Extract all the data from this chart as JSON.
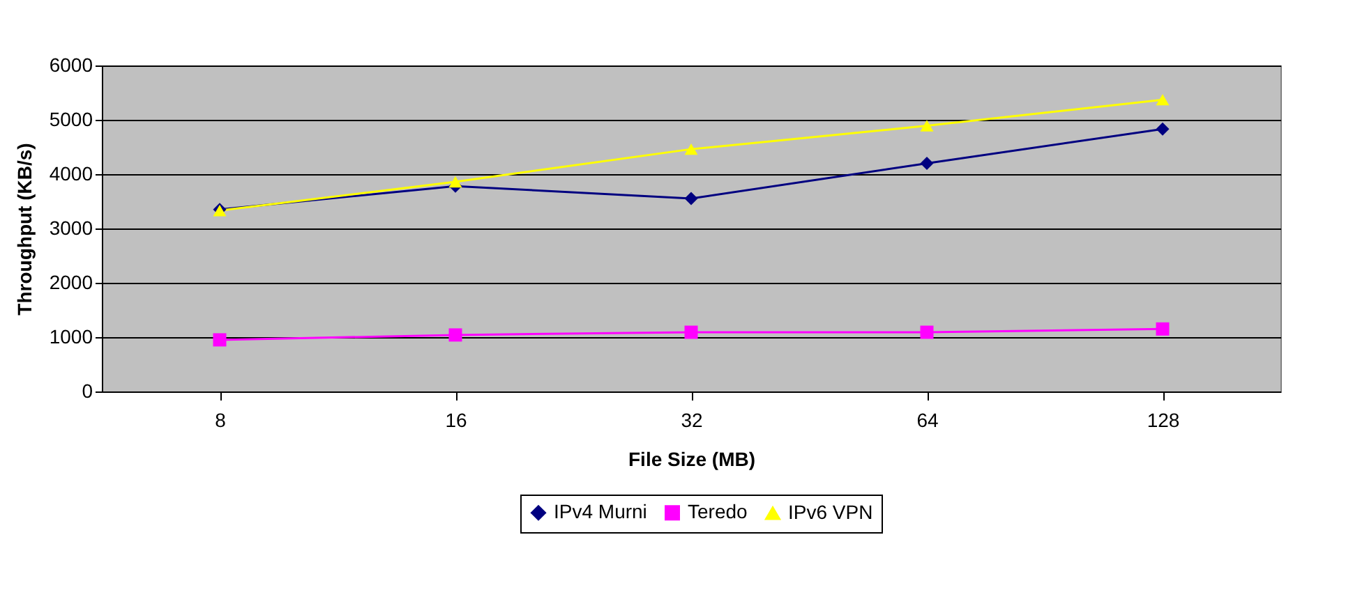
{
  "chart_data": {
    "type": "line",
    "xlabel": "File Size (MB)",
    "ylabel": "Throughput (KB/s)",
    "categories": [
      "8",
      "16",
      "32",
      "64",
      "128"
    ],
    "series": [
      {
        "name": "IPv4 Murni",
        "color": "#000080",
        "marker": "diamond",
        "values": [
          3350,
          3780,
          3550,
          4200,
          4830
        ]
      },
      {
        "name": "Teredo",
        "color": "#ff00ff",
        "marker": "square",
        "values": [
          950,
          1040,
          1090,
          1090,
          1150
        ]
      },
      {
        "name": "IPv6 VPN",
        "color": "#ffff00",
        "marker": "triangle",
        "values": [
          3330,
          3860,
          4460,
          4890,
          5370
        ]
      }
    ],
    "ylim": [
      0,
      6000
    ],
    "yticks": [
      0,
      1000,
      2000,
      3000,
      4000,
      5000,
      6000
    ],
    "grid": "y",
    "legend": "bottom"
  }
}
